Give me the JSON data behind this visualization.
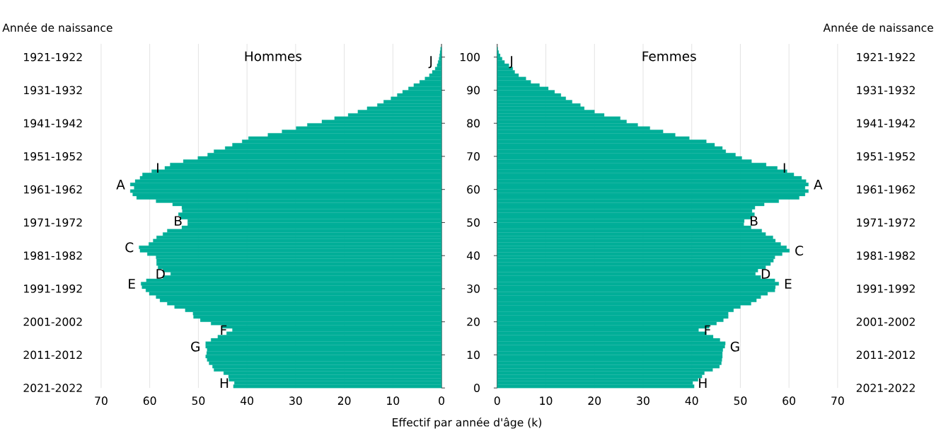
{
  "chart_data": [
    {
      "type": "bar",
      "orientation": "horizontal",
      "title": "Hommes",
      "ylabel": "Année de naissance",
      "color": "#00ae98",
      "grid": "x",
      "tick_labels": "x",
      "x": [
        0,
        1,
        2,
        3,
        4,
        5,
        6,
        7,
        8,
        9,
        10,
        11,
        12,
        13,
        14,
        15,
        16,
        17,
        18,
        19,
        20,
        21,
        22,
        23,
        24,
        25,
        26,
        27,
        28,
        29,
        30,
        31,
        32,
        33,
        34,
        35,
        36,
        37,
        38,
        39,
        40,
        41,
        42,
        43,
        44,
        45,
        46,
        47,
        48,
        49,
        50,
        51,
        52,
        53,
        54,
        55,
        56,
        57,
        58,
        59,
        60,
        61,
        62,
        63,
        64,
        65,
        66,
        67,
        68,
        69,
        70,
        71,
        72,
        73,
        74,
        75,
        76,
        77,
        78,
        79,
        80,
        81,
        82,
        83,
        84,
        85,
        86,
        87,
        88,
        89,
        90,
        91,
        92,
        93,
        94,
        95,
        96,
        97,
        98,
        99,
        100,
        101,
        102
      ],
      "values": [
        42.8,
        42.6,
        43.7,
        43.8,
        44.8,
        46.8,
        47.1,
        47.8,
        48.2,
        48.5,
        48.3,
        48.2,
        48.5,
        48.5,
        47.4,
        46.0,
        44.2,
        43.0,
        45.1,
        47.4,
        49.6,
        51.0,
        51.1,
        52.7,
        54.9,
        56.4,
        57.9,
        58.7,
        60.1,
        60.8,
        61.6,
        61.8,
        60.7,
        57.3,
        55.7,
        57.3,
        58.3,
        58.6,
        58.6,
        58.7,
        60.5,
        62.0,
        62.2,
        60.2,
        59.3,
        58.6,
        57.3,
        56.4,
        53.4,
        52.2,
        52.2,
        53.7,
        54.1,
        53.3,
        53.4,
        55.3,
        58.7,
        62.7,
        63.5,
        64.0,
        63.2,
        64.0,
        63.0,
        62.0,
        61.5,
        59.6,
        56.9,
        55.8,
        53.1,
        50.1,
        48.1,
        46.8,
        44.5,
        43.0,
        41.0,
        39.7,
        35.7,
        32.8,
        29.9,
        27.6,
        24.6,
        22.0,
        19.2,
        17.2,
        15.3,
        13.2,
        11.9,
        10.4,
        9.1,
        8.0,
        6.8,
        5.7,
        4.5,
        3.4,
        2.5,
        1.9,
        1.3,
        0.9,
        0.7,
        0.5,
        0.4,
        0.3,
        0.2
      ],
      "xlim": [
        70,
        0
      ],
      "xticks": [
        0,
        10,
        20,
        30,
        40,
        50,
        60,
        70
      ],
      "ylim": [
        0,
        104
      ],
      "yticks": [
        0,
        10,
        20,
        30,
        40,
        50,
        60,
        70,
        80,
        90,
        100
      ],
      "annotations": [
        "2021-2022",
        "2011-2012",
        "2001-2002",
        "1991-1992",
        "1981-1982",
        "1971-1972",
        "1961-1962",
        "1951-1952",
        "1941-1942",
        "1931-1932",
        "1921-1922",
        {
          "text": "A",
          "x": 64.0,
          "y": 61
        },
        {
          "text": "B",
          "x": 52.2,
          "y": 50
        },
        {
          "text": "C",
          "x": 62.2,
          "y": 42
        },
        {
          "text": "D",
          "x": 55.7,
          "y": 34
        },
        {
          "text": "E",
          "x": 61.8,
          "y": 31
        },
        {
          "text": "F",
          "x": 43.0,
          "y": 17
        },
        {
          "text": "G",
          "x": 48.5,
          "y": 12
        },
        {
          "text": "H",
          "x": 42.6,
          "y": 1
        },
        {
          "text": "I",
          "x": 56.9,
          "y": 66
        },
        {
          "text": "J",
          "x": 0.7,
          "y": 98
        }
      ]
    },
    {
      "type": "bar",
      "orientation": "horizontal",
      "title": "Femmes",
      "ylabel": "Année de naissance",
      "xlabel": "Effectif par année d'âge (k)",
      "color": "#00ae98",
      "grid": "x",
      "x": [
        0,
        1,
        2,
        3,
        4,
        5,
        6,
        7,
        8,
        9,
        10,
        11,
        12,
        13,
        14,
        15,
        16,
        17,
        18,
        19,
        20,
        21,
        22,
        23,
        24,
        25,
        26,
        27,
        28,
        29,
        30,
        31,
        32,
        33,
        34,
        35,
        36,
        37,
        38,
        39,
        40,
        41,
        42,
        43,
        44,
        45,
        46,
        47,
        48,
        49,
        50,
        51,
        52,
        53,
        54,
        55,
        56,
        57,
        58,
        59,
        60,
        61,
        62,
        63,
        64,
        65,
        66,
        67,
        68,
        69,
        70,
        71,
        72,
        73,
        74,
        75,
        76,
        77,
        78,
        79,
        80,
        81,
        82,
        83,
        84,
        85,
        86,
        87,
        88,
        89,
        90,
        91,
        92,
        93,
        94,
        95,
        96,
        97,
        98,
        99,
        100,
        101,
        102
      ],
      "values": [
        40.5,
        40.2,
        41.3,
        42.1,
        42.6,
        44.3,
        45.7,
        46.1,
        46.2,
        46.3,
        46.3,
        46.4,
        46.8,
        46.9,
        45.8,
        44.4,
        43.0,
        41.4,
        43.6,
        45.1,
        46.5,
        47.5,
        47.5,
        48.6,
        50.0,
        52.2,
        53.3,
        54.2,
        55.6,
        57.1,
        57.2,
        57.9,
        57.1,
        54.2,
        53.1,
        53.6,
        55.2,
        56.2,
        56.8,
        57.1,
        58.6,
        60.1,
        59.5,
        58.3,
        57.2,
        56.7,
        55.2,
        54.4,
        52.2,
        50.7,
        50.8,
        52.3,
        52.9,
        52.4,
        53.0,
        54.9,
        57.9,
        62.1,
        63.3,
        64.0,
        63.3,
        64.0,
        63.5,
        62.6,
        61.0,
        59.6,
        57.6,
        55.3,
        52.3,
        50.3,
        49.0,
        47.0,
        46.3,
        44.7,
        43.0,
        39.5,
        36.6,
        34.1,
        31.4,
        28.9,
        26.6,
        25.3,
        22.0,
        20.0,
        17.9,
        17.1,
        15.4,
        14.1,
        13.1,
        11.8,
        10.5,
        8.7,
        6.9,
        5.9,
        4.4,
        3.6,
        3.2,
        2.4,
        1.5,
        1.0,
        0.6,
        0.3,
        0.1
      ],
      "xlim": [
        0,
        70
      ],
      "xticks": [
        0,
        10,
        20,
        30,
        40,
        50,
        60,
        70
      ],
      "ylim": [
        0,
        104
      ],
      "yticks": [
        0,
        10,
        20,
        30,
        40,
        50,
        60,
        70,
        80,
        90,
        100
      ],
      "annotations": [
        "2021-2022",
        "2011-2012",
        "2001-2002",
        "1991-1992",
        "1981-1982",
        "1971-1972",
        "1961-1962",
        "1951-1952",
        "1941-1942",
        "1931-1932",
        "1921-1922",
        {
          "text": "A",
          "x": 64.0,
          "y": 61
        },
        {
          "text": "B",
          "x": 50.8,
          "y": 50
        },
        {
          "text": "C",
          "x": 60.1,
          "y": 41
        },
        {
          "text": "D",
          "x": 53.1,
          "y": 34
        },
        {
          "text": "E",
          "x": 57.9,
          "y": 31
        },
        {
          "text": "F",
          "x": 41.4,
          "y": 17
        },
        {
          "text": "G",
          "x": 46.8,
          "y": 12
        },
        {
          "text": "H",
          "x": 40.2,
          "y": 1
        },
        {
          "text": "I",
          "x": 57.6,
          "y": 66
        },
        {
          "text": "J",
          "x": 1.5,
          "y": 98
        }
      ]
    }
  ]
}
